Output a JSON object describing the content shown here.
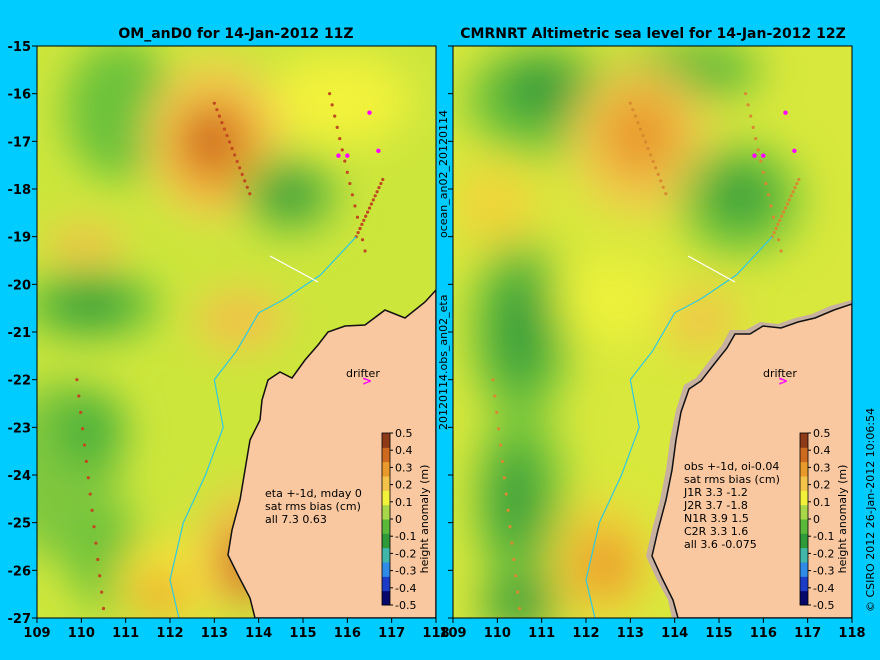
{
  "colors": {
    "background": "#00ccff",
    "land": "#f9c8a0",
    "coast": "#111111",
    "drifter": "#ff00ff",
    "colorscale": [
      "#08086b",
      "#1c3cc8",
      "#2f8be6",
      "#40b7a8",
      "#2e9a3a",
      "#5ab83a",
      "#a8d84a",
      "#f2f23a",
      "#f4c34a",
      "#e99a2c",
      "#cd6a20",
      "#8c3a18"
    ]
  },
  "chart_data": [
    {
      "type": "heatmap",
      "title": "OM_anD0 for 14-Jan-2012 11Z",
      "xlim": [
        109,
        118
      ],
      "ylim": [
        -27,
        -15
      ],
      "x_ticks": [
        "109",
        "110",
        "111",
        "112",
        "113",
        "114",
        "115",
        "116",
        "117",
        "118"
      ],
      "y_ticks": [
        "-15",
        "-16",
        "-17",
        "-18",
        "-19",
        "-20",
        "-21",
        "-22",
        "-23",
        "-24",
        "-25",
        "-26",
        "-27"
      ],
      "colorbar_label": "height anomaly (m)",
      "colorbar_ticks": [
        "0.5",
        "0.4",
        "0.3",
        "0.2",
        "0.1",
        "0",
        "-0.1",
        "-0.2",
        "-0.3",
        "-0.4",
        "-0.5"
      ],
      "colorbar_range": [
        -0.5,
        0.5
      ],
      "drifter_label": "drifter",
      "stats_lines": [
        "eta +-1d, mday 0",
        "sat rms bias (cm)",
        "all 7.3 0.63"
      ],
      "features": [
        {
          "lon": 113.4,
          "lat": -17.1,
          "value": 0.3
        },
        {
          "lon": 112.0,
          "lat": -19.2,
          "value": 0.2
        },
        {
          "lon": 113.0,
          "lat": -21.0,
          "value": 0.2
        },
        {
          "lon": 115.6,
          "lat": -18.3,
          "value": -0.1
        },
        {
          "lon": 110.8,
          "lat": -17.0,
          "value": -0.05
        },
        {
          "lon": 110.2,
          "lat": -20.4,
          "value": -0.1
        },
        {
          "lon": 112.2,
          "lat": -26.4,
          "value": 0.2
        },
        {
          "lon": 113.9,
          "lat": -26.0,
          "value": 0.3
        },
        {
          "lon": 110.2,
          "lat": -24.0,
          "value": -0.1
        }
      ]
    },
    {
      "type": "heatmap",
      "title": "CMRNRT Altimetric sea level  for 14-Jan-2012 12Z",
      "xlim": [
        109,
        118
      ],
      "ylim": [
        -27,
        -15
      ],
      "x_ticks": [
        "109",
        "110",
        "111",
        "112",
        "113",
        "114",
        "115",
        "116",
        "117",
        "118"
      ],
      "colorbar_label": "height anomaly (m)",
      "colorbar_ticks": [
        "0.5",
        "0.4",
        "0.3",
        "0.2",
        "0.1",
        "0",
        "-0.1",
        "-0.2",
        "-0.3",
        "-0.4",
        "-0.5"
      ],
      "colorbar_range": [
        -0.5,
        0.5
      ],
      "drifter_label": "drifter",
      "stats_lines": [
        "obs +-1d, oi-0.04",
        "sat rms bias (cm)",
        "J1R   3.3  -1.2",
        "J2R   3.7  -1.8",
        "N1R   3.9  1.5",
        "C2R   3.3  1.6",
        "all  3.6  -0.075"
      ],
      "features": [
        {
          "lon": 113.2,
          "lat": -17.0,
          "value": 0.25
        },
        {
          "lon": 110.3,
          "lat": -18.5,
          "value": 0.1
        },
        {
          "lon": 110.5,
          "lat": -21.5,
          "value": -0.15
        },
        {
          "lon": 110.5,
          "lat": -24.8,
          "value": -0.1
        },
        {
          "lon": 115.4,
          "lat": -18.4,
          "value": -0.15
        },
        {
          "lon": 111.3,
          "lat": -15.8,
          "value": -0.05
        },
        {
          "lon": 112.4,
          "lat": -26.3,
          "value": 0.2
        },
        {
          "lon": 110.4,
          "lat": -26.9,
          "value": -0.1
        }
      ]
    }
  ],
  "side_labels": {
    "middle_top": "ocean_an02_20120114",
    "middle_bottom": "20120114.obs_an02_eta",
    "right": "© CSIRO 2012   26-Jan-2012 10:06:54"
  }
}
